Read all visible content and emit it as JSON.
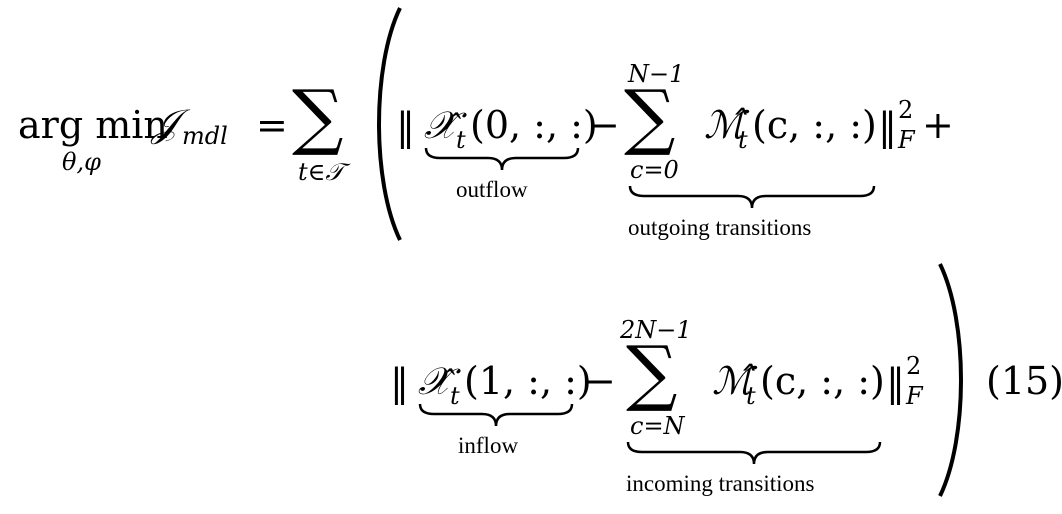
{
  "equation": {
    "lhs": {
      "argmin": "arg min",
      "subscript": "θ,φ",
      "objective": "𝒥",
      "objective_sub": "mdl",
      "equals": "="
    },
    "outer_sum": {
      "symbol": "∑",
      "lower": "t∈𝒯"
    },
    "line1": {
      "norm_open": "‖",
      "x_hat": "𝒳̂",
      "x_sub": "t",
      "x_args": "(0, :, :)",
      "minus": "−",
      "sum_upper": "N−1",
      "sum_symbol": "∑",
      "sum_lower": "c=0",
      "m_hat": "ℳ̂",
      "m_sub": "t",
      "m_args": "(c, :, :)",
      "norm_close": "‖",
      "norm_sup": "2",
      "norm_sub": "F",
      "plus": "+",
      "brace_label_1": "outflow",
      "brace_label_2": "outgoing transitions"
    },
    "line2": {
      "norm_open": "‖",
      "x_hat": "𝒳̂",
      "x_sub": "t",
      "x_args": "(1, :, :)",
      "minus": "−",
      "sum_upper": "2N−1",
      "sum_symbol": "∑",
      "sum_lower": "c=N",
      "m_hat": "ℳ̂",
      "m_sub": "t",
      "m_args": "(c, :, :)",
      "norm_close": "‖",
      "norm_sup": "2",
      "norm_sub": "F",
      "brace_label_1": "inflow",
      "brace_label_2": "incoming transitions"
    },
    "number": "(15)"
  }
}
